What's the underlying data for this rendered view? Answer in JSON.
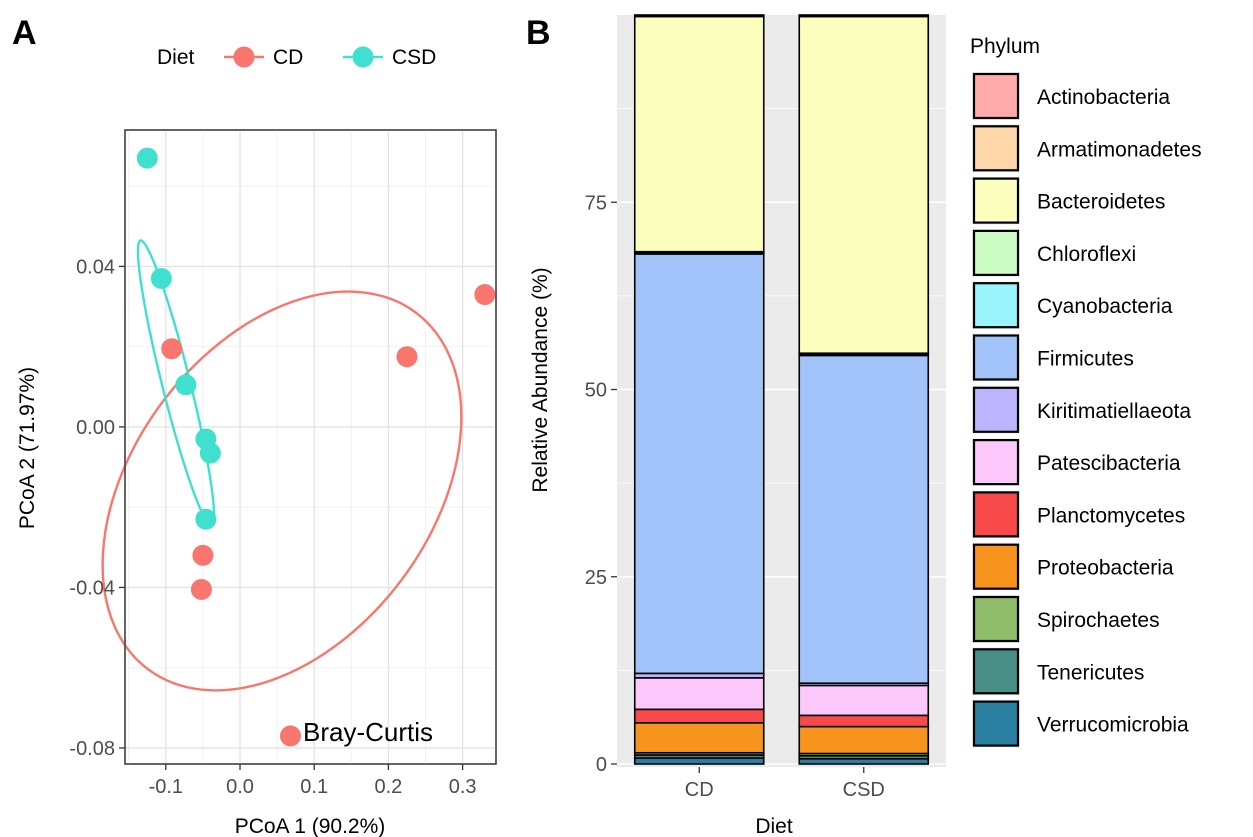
{
  "chart_data": [
    {
      "panel": "A",
      "type": "scatter",
      "xlabel": "PCoA 1 (90.2%)",
      "ylabel": "PCoA 2 (71.97%)",
      "xlim": [
        -0.155,
        0.345
      ],
      "ylim": [
        -0.084,
        0.074
      ],
      "x_ticks": [
        -0.1,
        0.0,
        0.1,
        0.2,
        0.3
      ],
      "x_tick_labels": [
        "-0.1",
        "0.0",
        "0.1",
        "0.2",
        "0.3"
      ],
      "y_ticks": [
        -0.08,
        -0.04,
        0.0,
        0.04
      ],
      "y_tick_labels": [
        "-0.08",
        "-0.04",
        "0.00",
        "0.04"
      ],
      "grid": true,
      "legend": {
        "title": "Diet",
        "position": "top"
      },
      "annotation": "Bray-Curtis",
      "series": [
        {
          "name": "CD",
          "color": "#F8766D",
          "points": [
            {
              "x": -0.092,
              "y": 0.0195
            },
            {
              "x": 0.225,
              "y": 0.0175
            },
            {
              "x": 0.33,
              "y": 0.033
            },
            {
              "x": -0.05,
              "y": -0.032
            },
            {
              "x": -0.052,
              "y": -0.0405
            },
            {
              "x": 0.068,
              "y": -0.077
            }
          ]
        },
        {
          "name": "CSD",
          "color": "#40E0D0",
          "points": [
            {
              "x": -0.125,
              "y": 0.067
            },
            {
              "x": -0.106,
              "y": 0.037
            },
            {
              "x": -0.073,
              "y": 0.0105
            },
            {
              "x": -0.046,
              "y": -0.003
            },
            {
              "x": -0.04,
              "y": -0.0065
            },
            {
              "x": -0.046,
              "y": -0.023
            }
          ]
        }
      ]
    },
    {
      "panel": "B",
      "type": "bar",
      "stacked": true,
      "xlabel": "Diet",
      "ylabel": "Relative Abundance (%)",
      "ylim": [
        0,
        100
      ],
      "y_ticks": [
        0,
        25,
        50,
        75
      ],
      "y_tick_labels": [
        "0",
        "25",
        "50",
        "75"
      ],
      "categories": [
        "CD",
        "CSD"
      ],
      "legend": {
        "title": "Phylum",
        "position": "right"
      },
      "series": [
        {
          "name": "Verrucomicrobia",
          "color": "#2A7FA0",
          "values": [
            0.8,
            0.7
          ]
        },
        {
          "name": "Tenericutes",
          "color": "#4A8E88",
          "values": [
            0.4,
            0.4
          ]
        },
        {
          "name": "Spirochaetes",
          "color": "#8FBC6B",
          "values": [
            0.3,
            0.3
          ]
        },
        {
          "name": "Proteobacteria",
          "color": "#F7941D",
          "values": [
            4.0,
            3.6
          ]
        },
        {
          "name": "Planctomycetes",
          "color": "#F84A4A",
          "values": [
            1.8,
            1.5
          ]
        },
        {
          "name": "Patescibacteria",
          "color": "#FCC8FC",
          "values": [
            4.2,
            4.0
          ]
        },
        {
          "name": "Kiritimatiellaeota",
          "color": "#BDB4FE",
          "values": [
            0.6,
            0.3
          ]
        },
        {
          "name": "Firmicutes",
          "color": "#A2C2FA",
          "values": [
            56.0,
            43.8
          ]
        },
        {
          "name": "Cyanobacteria",
          "color": "#9AF4FB",
          "values": [
            0.1,
            0.1
          ]
        },
        {
          "name": "Chloroflexi",
          "color": "#CBFDC5",
          "values": [
            0.2,
            0.2
          ]
        },
        {
          "name": "Bacteroidetes",
          "color": "#FCFEBE",
          "values": [
            31.4,
            45.0
          ]
        },
        {
          "name": "Armatimonadetes",
          "color": "#FDD6A9",
          "values": [
            0.1,
            0.1
          ]
        },
        {
          "name": "Actinobacteria",
          "color": "#FFABAB",
          "values": [
            0.1,
            0.1
          ]
        }
      ],
      "legend_order": [
        "Actinobacteria",
        "Armatimonadetes",
        "Bacteroidetes",
        "Chloroflexi",
        "Cyanobacteria",
        "Firmicutes",
        "Kiritimatiellaeota",
        "Patescibacteria",
        "Planctomycetes",
        "Proteobacteria",
        "Spirochaetes",
        "Tenericutes",
        "Verrucomicrobia"
      ]
    }
  ]
}
